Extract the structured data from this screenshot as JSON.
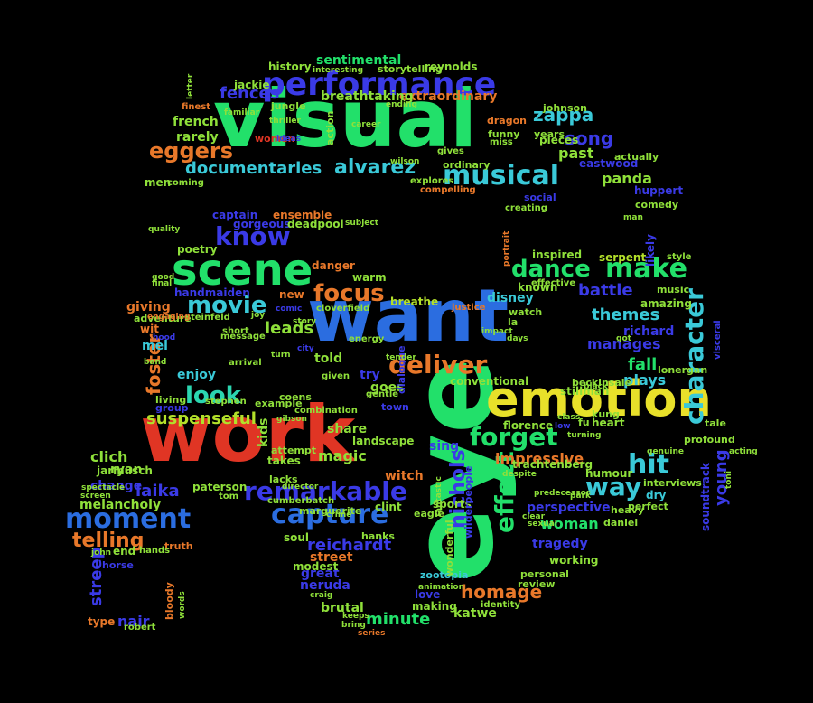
{
  "colors": {
    "background": "#000000",
    "green": "#22e06a",
    "lime": "#8fe03a",
    "orange": "#e8782a",
    "red": "#e03524",
    "blue": "#2b6de0",
    "indigo": "#3a3ae6",
    "cyan": "#3ac9d8",
    "teal": "#2bd6b0",
    "yellow": "#e8e02a",
    "light_green": "#5be36b",
    "yellow_green": "#b3e02a"
  },
  "words": [
    {
      "text": "visual",
      "color": "green"
    },
    {
      "text": "want",
      "color": "blue"
    },
    {
      "text": "work",
      "color": "red"
    },
    {
      "text": "eye",
      "color": "green"
    },
    {
      "text": "emotion",
      "color": "yellow"
    },
    {
      "text": "scene",
      "color": "green"
    },
    {
      "text": "performance",
      "color": "indigo"
    },
    {
      "text": "capture",
      "color": "blue"
    },
    {
      "text": "musical",
      "color": "cyan"
    },
    {
      "text": "moment",
      "color": "blue"
    },
    {
      "text": "remarkable",
      "color": "indigo"
    },
    {
      "text": "deliver",
      "color": "orange"
    },
    {
      "text": "forget",
      "color": "green"
    },
    {
      "text": "make",
      "color": "green"
    },
    {
      "text": "hit",
      "color": "cyan"
    },
    {
      "text": "character",
      "color": "cyan"
    },
    {
      "text": "know",
      "color": "indigo"
    },
    {
      "text": "look",
      "color": "teal"
    },
    {
      "text": "movie",
      "color": "cyan"
    },
    {
      "text": "focus",
      "color": "orange"
    },
    {
      "text": "way",
      "color": "cyan"
    },
    {
      "text": "dance",
      "color": "green"
    },
    {
      "text": "eggers",
      "color": "orange"
    },
    {
      "text": "alvarez",
      "color": "cyan"
    },
    {
      "text": "documentaries",
      "color": "cyan"
    },
    {
      "text": "zappa",
      "color": "cyan"
    },
    {
      "text": "song",
      "color": "indigo"
    },
    {
      "text": "effect",
      "color": "green"
    },
    {
      "text": "homage",
      "color": "orange"
    },
    {
      "text": "telling",
      "color": "orange"
    },
    {
      "text": "reichardt",
      "color": "indigo"
    },
    {
      "text": "minute",
      "color": "green"
    },
    {
      "text": "suspenseful",
      "color": "yellow_green"
    },
    {
      "text": "fences",
      "color": "indigo"
    },
    {
      "text": "battle",
      "color": "indigo"
    },
    {
      "text": "themes",
      "color": "cyan"
    },
    {
      "text": "manages",
      "color": "indigo"
    },
    {
      "text": "fall",
      "color": "green"
    },
    {
      "text": "young",
      "color": "indigo"
    },
    {
      "text": "laika",
      "color": "indigo"
    },
    {
      "text": "woman",
      "color": "green"
    },
    {
      "text": "foster",
      "color": "orange"
    },
    {
      "text": "sentimental",
      "color": "green"
    },
    {
      "text": "extraordinary",
      "color": "orange"
    },
    {
      "text": "breathtaking",
      "color": "lime"
    },
    {
      "text": "reynolds",
      "color": "lime"
    },
    {
      "text": "history",
      "color": "lime"
    },
    {
      "text": "jackie",
      "color": "lime"
    },
    {
      "text": "french",
      "color": "lime"
    },
    {
      "text": "rarely",
      "color": "lime"
    },
    {
      "text": "women",
      "color": "red"
    },
    {
      "text": "past",
      "color": "lime"
    },
    {
      "text": "eastwood",
      "color": "indigo"
    },
    {
      "text": "panda",
      "color": "lime"
    },
    {
      "text": "huppert",
      "color": "indigo"
    },
    {
      "text": "captain",
      "color": "indigo"
    },
    {
      "text": "gorgeous",
      "color": "indigo"
    },
    {
      "text": "ensemble",
      "color": "orange"
    },
    {
      "text": "deadpool",
      "color": "lime"
    },
    {
      "text": "danger",
      "color": "orange"
    },
    {
      "text": "warm",
      "color": "lime"
    },
    {
      "text": "poetry",
      "color": "lime"
    },
    {
      "text": "handmaiden",
      "color": "indigo"
    },
    {
      "text": "new",
      "color": "orange"
    },
    {
      "text": "leads",
      "color": "lime"
    },
    {
      "text": "giving",
      "color": "orange"
    },
    {
      "text": "breathe",
      "color": "yellow_green"
    },
    {
      "text": "adventure",
      "color": "lime"
    },
    {
      "text": "steinfeld",
      "color": "lime"
    },
    {
      "text": "mel",
      "color": "cyan"
    },
    {
      "text": "wit",
      "color": "orange"
    },
    {
      "text": "told",
      "color": "lime"
    },
    {
      "text": "disney",
      "color": "cyan"
    },
    {
      "text": "known",
      "color": "lime"
    },
    {
      "text": "inspired",
      "color": "lime"
    },
    {
      "text": "serpent",
      "color": "yellow_green"
    },
    {
      "text": "likely",
      "color": "indigo"
    },
    {
      "text": "richard",
      "color": "indigo"
    },
    {
      "text": "plays",
      "color": "cyan"
    },
    {
      "text": "enjoy",
      "color": "cyan"
    },
    {
      "text": "try",
      "color": "indigo"
    },
    {
      "text": "goes",
      "color": "lime"
    },
    {
      "text": "conventional",
      "color": "lime"
    },
    {
      "text": "kids",
      "color": "lime"
    },
    {
      "text": "share",
      "color": "lime"
    },
    {
      "text": "landscape",
      "color": "lime"
    },
    {
      "text": "magic",
      "color": "lime"
    },
    {
      "text": "sing",
      "color": "indigo"
    },
    {
      "text": "witch",
      "color": "orange"
    },
    {
      "text": "impressive",
      "color": "orange"
    },
    {
      "text": "perspective",
      "color": "indigo"
    },
    {
      "text": "clich",
      "color": "lime"
    },
    {
      "text": "ryan",
      "color": "lime"
    },
    {
      "text": "takes",
      "color": "lime"
    },
    {
      "text": "change",
      "color": "indigo"
    },
    {
      "text": "melancholy",
      "color": "lime"
    },
    {
      "text": "end",
      "color": "lime"
    },
    {
      "text": "nichols",
      "color": "indigo"
    },
    {
      "text": "tragedy",
      "color": "indigo"
    },
    {
      "text": "street",
      "color": "orange"
    },
    {
      "text": "great",
      "color": "indigo"
    },
    {
      "text": "soul",
      "color": "lime"
    },
    {
      "text": "neruda",
      "color": "indigo"
    },
    {
      "text": "modest",
      "color": "lime"
    },
    {
      "text": "katwe",
      "color": "lime"
    },
    {
      "text": "brutal",
      "color": "lime"
    },
    {
      "text": "zootopia",
      "color": "cyan"
    },
    {
      "text": "nair",
      "color": "indigo"
    },
    {
      "text": "type",
      "color": "orange"
    },
    {
      "text": "streep",
      "color": "indigo"
    },
    {
      "text": "bloody",
      "color": "orange"
    },
    {
      "text": "working",
      "color": "lime"
    },
    {
      "text": "sports",
      "color": "lime"
    },
    {
      "text": "clint",
      "color": "lime"
    },
    {
      "text": "love",
      "color": "indigo"
    },
    {
      "text": "making",
      "color": "lime"
    },
    {
      "text": "humour",
      "color": "lime"
    },
    {
      "text": "dry",
      "color": "cyan"
    },
    {
      "text": "soundtrack",
      "color": "indigo"
    },
    {
      "text": "florence",
      "color": "lime"
    },
    {
      "text": "trachtenberg",
      "color": "lime"
    },
    {
      "text": "paterson",
      "color": "lime"
    },
    {
      "text": "jarmusch",
      "color": "lime"
    },
    {
      "text": "heart",
      "color": "lime"
    },
    {
      "text": "amazing",
      "color": "lime"
    },
    {
      "text": "music",
      "color": "lime"
    },
    {
      "text": "comedy",
      "color": "lime"
    },
    {
      "text": "ordinary",
      "color": "lime"
    },
    {
      "text": "social",
      "color": "indigo"
    },
    {
      "text": "pieces",
      "color": "lime"
    },
    {
      "text": "funny",
      "color": "lime"
    },
    {
      "text": "dragon",
      "color": "orange"
    },
    {
      "text": "johnson",
      "color": "lime"
    },
    {
      "text": "jungle",
      "color": "lime"
    },
    {
      "text": "interesting",
      "color": "lime"
    },
    {
      "text": "storytelling",
      "color": "lime"
    },
    {
      "text": "action",
      "color": "lime"
    },
    {
      "text": "coens",
      "color": "lime"
    },
    {
      "text": "watch",
      "color": "lime"
    },
    {
      "text": "la",
      "color": "lime"
    },
    {
      "text": "actually",
      "color": "lime"
    },
    {
      "text": "years",
      "color": "lime"
    },
    {
      "text": "men",
      "color": "lime"
    },
    {
      "text": "daniel",
      "color": "lime"
    },
    {
      "text": "heavy",
      "color": "lime"
    },
    {
      "text": "perfect",
      "color": "lime"
    },
    {
      "text": "interviews",
      "color": "lime"
    },
    {
      "text": "profound",
      "color": "lime"
    },
    {
      "text": "tale",
      "color": "lime"
    },
    {
      "text": "lonergan",
      "color": "lime"
    },
    {
      "text": "stillman",
      "color": "lime"
    },
    {
      "text": "beckinsale",
      "color": "lime"
    },
    {
      "text": "kung",
      "color": "lime"
    },
    {
      "text": "fu",
      "color": "lime"
    },
    {
      "text": "town",
      "color": "indigo"
    },
    {
      "text": "dialogue",
      "color": "indigo"
    },
    {
      "text": "combination",
      "color": "lime"
    },
    {
      "text": "example",
      "color": "lime"
    },
    {
      "text": "living",
      "color": "lime"
    },
    {
      "text": "group",
      "color": "indigo"
    },
    {
      "text": "attempt",
      "color": "lime"
    },
    {
      "text": "lacks",
      "color": "lime"
    },
    {
      "text": "cumberbatch",
      "color": "lime"
    },
    {
      "text": "marguerite",
      "color": "lime"
    },
    {
      "text": "hanks",
      "color": "lime"
    },
    {
      "text": "eagle",
      "color": "lime"
    },
    {
      "text": "wonderful",
      "color": "lime"
    },
    {
      "text": "personal",
      "color": "lime"
    },
    {
      "text": "review",
      "color": "lime"
    },
    {
      "text": "truth",
      "color": "orange"
    },
    {
      "text": "horse",
      "color": "indigo"
    },
    {
      "text": "robert",
      "color": "lime"
    },
    {
      "text": "keeps",
      "color": "lime"
    },
    {
      "text": "bring",
      "color": "lime"
    },
    {
      "text": "series",
      "color": "orange"
    },
    {
      "text": "animation",
      "color": "lime"
    },
    {
      "text": "craig",
      "color": "lime"
    },
    {
      "text": "gives",
      "color": "lime"
    },
    {
      "text": "creating",
      "color": "lime"
    },
    {
      "text": "miss",
      "color": "lime"
    },
    {
      "text": "wilderpeople",
      "color": "indigo"
    },
    {
      "text": "identity",
      "color": "lime"
    },
    {
      "text": "stephen",
      "color": "lime"
    },
    {
      "text": "short",
      "color": "lime"
    },
    {
      "text": "message",
      "color": "lime"
    },
    {
      "text": "tom",
      "color": "lime"
    },
    {
      "text": "fantastic",
      "color": "lime"
    },
    {
      "text": "compelling",
      "color": "orange"
    },
    {
      "text": "explores",
      "color": "lime"
    },
    {
      "text": "coming",
      "color": "lime"
    },
    {
      "text": "hands",
      "color": "lime"
    },
    {
      "text": "john",
      "color": "lime"
    },
    {
      "text": "effective",
      "color": "lime"
    },
    {
      "text": "cloverfield",
      "color": "lime"
    },
    {
      "text": "justice",
      "color": "orange"
    },
    {
      "text": "style",
      "color": "lime"
    },
    {
      "text": "energy",
      "color": "lime"
    },
    {
      "text": "given",
      "color": "lime"
    },
    {
      "text": "gentle",
      "color": "lime"
    },
    {
      "text": "visceral",
      "color": "indigo"
    },
    {
      "text": "portrait",
      "color": "orange"
    },
    {
      "text": "quality",
      "color": "lime"
    },
    {
      "text": "ending",
      "color": "lime"
    },
    {
      "text": "finest",
      "color": "orange"
    },
    {
      "text": "letter",
      "color": "lime"
    },
    {
      "text": "familiar",
      "color": "lime"
    },
    {
      "text": "comic",
      "color": "indigo"
    },
    {
      "text": "story",
      "color": "lime"
    },
    {
      "text": "city",
      "color": "indigo"
    },
    {
      "text": "turn",
      "color": "lime"
    },
    {
      "text": "band",
      "color": "lime"
    },
    {
      "text": "hood",
      "color": "indigo"
    },
    {
      "text": "arrival",
      "color": "lime"
    },
    {
      "text": "engaging",
      "color": "orange"
    },
    {
      "text": "good",
      "color": "lime"
    },
    {
      "text": "final",
      "color": "lime"
    },
    {
      "text": "screen",
      "color": "lime"
    },
    {
      "text": "spectacle",
      "color": "lime"
    },
    {
      "text": "despite",
      "color": "lime"
    },
    {
      "text": "turning",
      "color": "lime"
    },
    {
      "text": "genuine",
      "color": "lime"
    },
    {
      "text": "acting",
      "color": "lime"
    },
    {
      "text": "toni",
      "color": "lime"
    },
    {
      "text": "man",
      "color": "lime"
    },
    {
      "text": "gibson",
      "color": "lime"
    },
    {
      "text": "crime",
      "color": "lime"
    },
    {
      "text": "sexual",
      "color": "lime"
    },
    {
      "text": "clear",
      "color": "lime"
    },
    {
      "text": "days",
      "color": "lime"
    },
    {
      "text": "impact",
      "color": "lime"
    },
    {
      "text": "got",
      "color": "lime"
    },
    {
      "text": "black",
      "color": "lime"
    },
    {
      "text": "low",
      "color": "indigo"
    },
    {
      "text": "class",
      "color": "lime"
    },
    {
      "text": "tender",
      "color": "lime"
    },
    {
      "text": "ideas",
      "color": "indigo"
    },
    {
      "text": "thriller",
      "color": "lime"
    },
    {
      "text": "director",
      "color": "lime"
    },
    {
      "text": "predecessor",
      "color": "lime"
    },
    {
      "text": "park",
      "color": "lime"
    },
    {
      "text": "joy",
      "color": "lime"
    },
    {
      "text": "subject",
      "color": "lime"
    },
    {
      "text": "wilson",
      "color": "lime"
    },
    {
      "text": "career",
      "color": "lime"
    },
    {
      "text": "words",
      "color": "lime"
    },
    {
      "text": "manchester",
      "color": "lime"
    }
  ]
}
